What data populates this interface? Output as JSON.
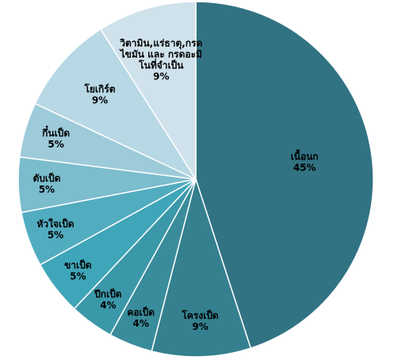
{
  "chart_data": {
    "type": "pie",
    "start_angle_deg": 0,
    "direction": "clockwise",
    "slices": [
      {
        "label": "เนื้อนก",
        "value": 45,
        "value_label": "45%",
        "color": "#317383",
        "text_color": "#000000"
      },
      {
        "label": "โครงเป็ด",
        "value": 9,
        "value_label": "9%",
        "color": "#34808f",
        "text_color": "#000000"
      },
      {
        "label": "คอเป็ด",
        "value": 4,
        "value_label": "4%",
        "color": "#398c9b",
        "text_color": "#000000"
      },
      {
        "label": "ปีกเป็ด",
        "value": 4,
        "value_label": "4%",
        "color": "#3b98a9",
        "text_color": "#000000"
      },
      {
        "label": "ขาเป็ด",
        "value": 5,
        "value_label": "5%",
        "color": "#3fa5b8",
        "text_color": "#000000"
      },
      {
        "label": "หัวใจเป็ด",
        "value": 5,
        "value_label": "5%",
        "color": "#52acc0",
        "text_color": "#000000"
      },
      {
        "label": "ตับเป็ด",
        "value": 5,
        "value_label": "5%",
        "color": "#7bbccd",
        "text_color": "#000000"
      },
      {
        "label": "กึ๋นเป็ด",
        "value": 5,
        "value_label": "5%",
        "color": "#9dcbd9",
        "text_color": "#000000"
      },
      {
        "label": "โยเกิร์ต",
        "value": 9,
        "value_label": "9%",
        "color": "#b7d8e4",
        "text_color": "#000000"
      },
      {
        "label": [
          "วิตามิน,แร่ธาตุ,กรด",
          "ไขมัน และ กรดอะมิ",
          "โนที่จำเป็น"
        ],
        "value": 9,
        "value_label": "9%",
        "color": "#cfe2ec",
        "text_color": "#000000"
      }
    ]
  }
}
